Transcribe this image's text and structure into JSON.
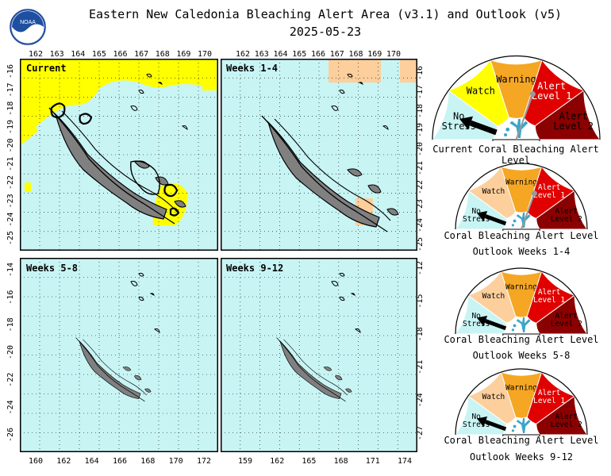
{
  "header": {
    "title": "Eastern New Caledonia Bleaching Alert Area (v3.1) and Outlook (v5)",
    "date": "2025-05-23",
    "logo_text": "NOAA"
  },
  "colors": {
    "no_stress": "#c8f4f4",
    "watch_yellow": "#ffff00",
    "watch_peach": "#fccf9c",
    "warning": "#f5a623",
    "alert1": "#e00000",
    "alert2": "#8b0000",
    "land": "#808080"
  },
  "panels": [
    {
      "name": "current",
      "label": "Current",
      "watch_color": "yellow"
    },
    {
      "name": "weeks-1-4",
      "label": "Weeks 1-4",
      "watch_color": "peach"
    },
    {
      "name": "weeks-5-8",
      "label": "Weeks 5-8",
      "watch_color": "peach"
    },
    {
      "name": "weeks-9-12",
      "label": "Weeks 9-12",
      "watch_color": "peach"
    }
  ],
  "axes": {
    "top_lon_ticks": [
      "162",
      "163",
      "164",
      "165",
      "166",
      "167",
      "168",
      "169",
      "170"
    ],
    "lat_ticks_top_left": [
      "-16",
      "-17",
      "-18",
      "-19",
      "-20",
      "-21",
      "-22",
      "-23",
      "-24",
      "-25"
    ],
    "lat_ticks_top_right": [
      "-16",
      "-17",
      "-18",
      "-19",
      "-20",
      "-21",
      "-22",
      "-23",
      "-24",
      "-25"
    ],
    "lat_ticks_bottom_left": [
      "-14",
      "-16",
      "-18",
      "-20",
      "-22",
      "-24",
      "-26"
    ],
    "lat_ticks_bottom_right": [
      "-12",
      "-15",
      "-18",
      "-21",
      "-24",
      "-27"
    ],
    "bottom_lon_ticks_left": [
      "160",
      "162",
      "164",
      "166",
      "168",
      "170",
      "172"
    ],
    "bottom_lon_ticks_right": [
      "159",
      "162",
      "165",
      "168",
      "171",
      "174"
    ]
  },
  "gauge_labels": {
    "no_stress": [
      "No",
      "Stress"
    ],
    "watch": "Watch",
    "warning": "Warning",
    "alert1": [
      "Alert",
      "Level 1"
    ],
    "alert2": [
      "Alert",
      "Level 2"
    ]
  },
  "gauges": [
    {
      "name": "current",
      "caption1": "Current Coral Bleaching Alert Level",
      "caption2": "",
      "level": "No Stress",
      "watch_color": "yellow"
    },
    {
      "name": "weeks-1-4",
      "caption1": "Coral Bleaching Alert Level",
      "caption2": "Outlook Weeks 1-4",
      "level": "No Stress",
      "watch_color": "peach"
    },
    {
      "name": "weeks-5-8",
      "caption1": "Coral Bleaching Alert Level",
      "caption2": "Outlook Weeks 5-8",
      "level": "No Stress",
      "watch_color": "peach"
    },
    {
      "name": "weeks-9-12",
      "caption1": "Coral Bleaching Alert Level",
      "caption2": "Outlook Weeks 9-12",
      "level": "No Stress",
      "watch_color": "peach"
    }
  ]
}
